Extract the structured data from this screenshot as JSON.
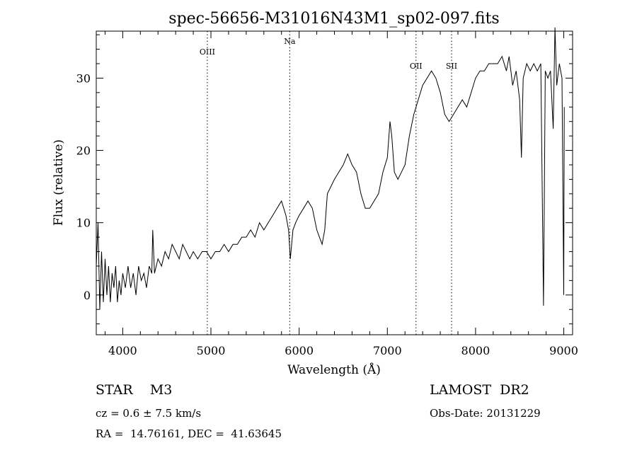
{
  "chart_data": {
    "type": "line",
    "title": "spec-56656-M31016N43M1_sp02-097.fits",
    "xlabel": "Wavelength (Å)",
    "ylabel": "Flux (relative)",
    "xlim": [
      3700,
      9100
    ],
    "ylim": [
      -5.5,
      36.5
    ],
    "xticks": [
      4000,
      5000,
      6000,
      7000,
      8000,
      9000
    ],
    "yticks": [
      0,
      10,
      20,
      30
    ],
    "grid": false,
    "series": [
      {
        "points": [
          [
            3700,
            4
          ],
          [
            3720,
            10
          ],
          [
            3740,
            -2
          ],
          [
            3760,
            6
          ],
          [
            3780,
            -1
          ],
          [
            3800,
            5
          ],
          [
            3820,
            0
          ],
          [
            3840,
            4
          ],
          [
            3860,
            -1
          ],
          [
            3880,
            3
          ],
          [
            3900,
            1
          ],
          [
            3920,
            4
          ],
          [
            3940,
            -1
          ],
          [
            3960,
            2
          ],
          [
            3980,
            0
          ],
          [
            4000,
            3
          ],
          [
            4030,
            1
          ],
          [
            4060,
            4
          ],
          [
            4090,
            1
          ],
          [
            4120,
            3
          ],
          [
            4150,
            0
          ],
          [
            4180,
            4
          ],
          [
            4210,
            2
          ],
          [
            4240,
            3
          ],
          [
            4270,
            1
          ],
          [
            4300,
            4
          ],
          [
            4330,
            3
          ],
          [
            4340,
            9
          ],
          [
            4360,
            3
          ],
          [
            4400,
            5
          ],
          [
            4440,
            4
          ],
          [
            4480,
            6
          ],
          [
            4520,
            5
          ],
          [
            4560,
            7
          ],
          [
            4600,
            6
          ],
          [
            4640,
            5
          ],
          [
            4680,
            7
          ],
          [
            4720,
            6
          ],
          [
            4760,
            5
          ],
          [
            4800,
            6
          ],
          [
            4850,
            5
          ],
          [
            4900,
            6
          ],
          [
            4950,
            6
          ],
          [
            5000,
            5
          ],
          [
            5050,
            6
          ],
          [
            5100,
            6
          ],
          [
            5150,
            7
          ],
          [
            5200,
            6
          ],
          [
            5250,
            7
          ],
          [
            5300,
            7
          ],
          [
            5350,
            8
          ],
          [
            5400,
            8
          ],
          [
            5450,
            9
          ],
          [
            5500,
            8
          ],
          [
            5550,
            10
          ],
          [
            5600,
            9
          ],
          [
            5650,
            10
          ],
          [
            5700,
            11
          ],
          [
            5750,
            12
          ],
          [
            5800,
            13
          ],
          [
            5850,
            11
          ],
          [
            5880,
            9
          ],
          [
            5900,
            5
          ],
          [
            5930,
            9
          ],
          [
            5960,
            10
          ],
          [
            6000,
            11
          ],
          [
            6050,
            12
          ],
          [
            6100,
            13
          ],
          [
            6150,
            12
          ],
          [
            6200,
            9
          ],
          [
            6230,
            8
          ],
          [
            6260,
            7
          ],
          [
            6290,
            9
          ],
          [
            6320,
            14
          ],
          [
            6360,
            15
          ],
          [
            6400,
            16
          ],
          [
            6450,
            17
          ],
          [
            6500,
            18
          ],
          [
            6550,
            19.5
          ],
          [
            6600,
            18
          ],
          [
            6650,
            17
          ],
          [
            6700,
            14
          ],
          [
            6750,
            12
          ],
          [
            6800,
            12
          ],
          [
            6850,
            13
          ],
          [
            6900,
            14
          ],
          [
            6950,
            17
          ],
          [
            7000,
            19
          ],
          [
            7030,
            24
          ],
          [
            7050,
            22
          ],
          [
            7080,
            17
          ],
          [
            7120,
            16
          ],
          [
            7160,
            17
          ],
          [
            7200,
            18
          ],
          [
            7250,
            22
          ],
          [
            7300,
            25
          ],
          [
            7350,
            27
          ],
          [
            7400,
            29
          ],
          [
            7450,
            30
          ],
          [
            7500,
            31
          ],
          [
            7550,
            30
          ],
          [
            7600,
            28
          ],
          [
            7650,
            25
          ],
          [
            7700,
            24
          ],
          [
            7750,
            25
          ],
          [
            7800,
            26
          ],
          [
            7850,
            27
          ],
          [
            7900,
            26
          ],
          [
            7950,
            28
          ],
          [
            8000,
            30
          ],
          [
            8050,
            31
          ],
          [
            8100,
            31
          ],
          [
            8150,
            32
          ],
          [
            8200,
            32
          ],
          [
            8250,
            32
          ],
          [
            8300,
            33
          ],
          [
            8350,
            31
          ],
          [
            8380,
            33
          ],
          [
            8420,
            29
          ],
          [
            8460,
            31
          ],
          [
            8500,
            27
          ],
          [
            8520,
            19
          ],
          [
            8540,
            30
          ],
          [
            8580,
            32
          ],
          [
            8620,
            31
          ],
          [
            8660,
            32
          ],
          [
            8700,
            31
          ],
          [
            8740,
            32
          ],
          [
            8770,
            -1.5
          ],
          [
            8790,
            31
          ],
          [
            8820,
            30
          ],
          [
            8850,
            31
          ],
          [
            8880,
            23
          ],
          [
            8900,
            37
          ],
          [
            8920,
            29
          ],
          [
            8950,
            32
          ],
          [
            8980,
            30
          ],
          [
            9000,
            0
          ],
          [
            9005,
            26
          ]
        ]
      }
    ],
    "annotations": [
      {
        "label": "OIII",
        "x": 4959
      },
      {
        "label": "Na",
        "x": 5893
      },
      {
        "label": "OII",
        "x": 7325
      },
      {
        "label": "SII",
        "x": 7728
      }
    ]
  },
  "info": {
    "object": "STAR    M3",
    "survey": "LAMOST  DR2",
    "cz": "cz = 0.6 ± 7.5 km/s",
    "obs_date": "Obs-Date: 20131229",
    "radec": "RA =  14.76161, DEC =  41.63645"
  }
}
